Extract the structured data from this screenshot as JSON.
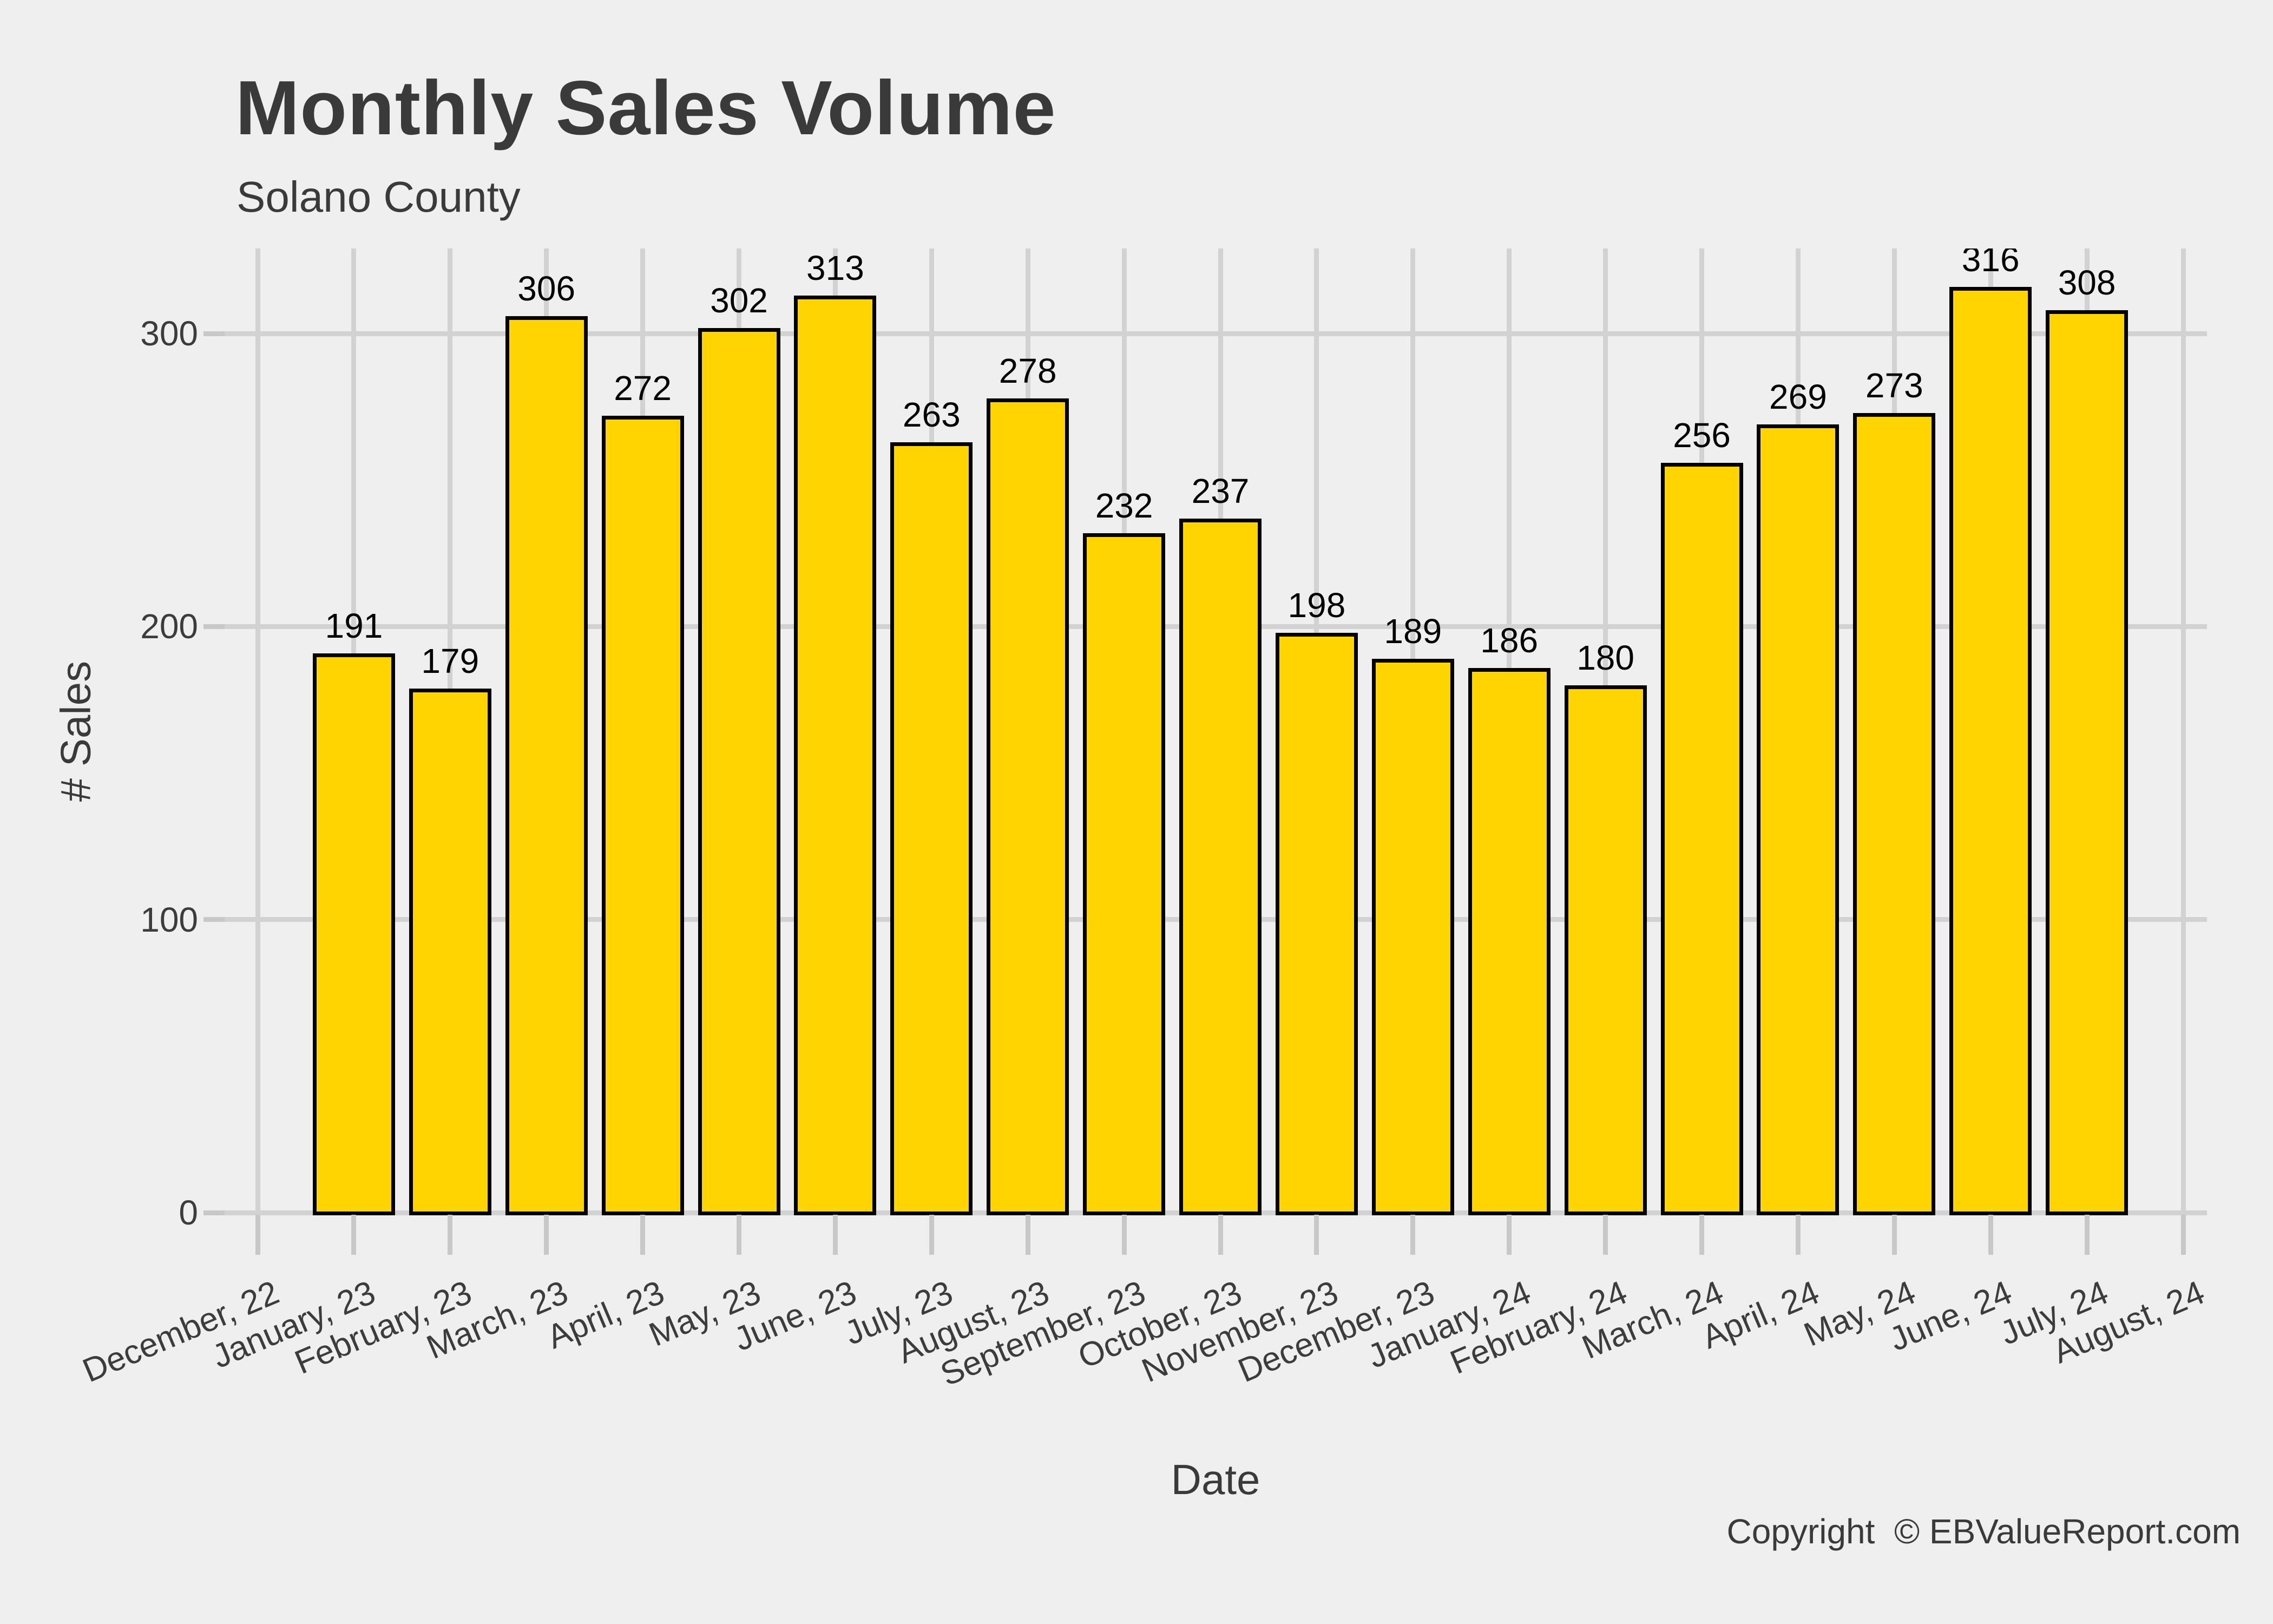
{
  "header": {
    "title": "Monthly Sales Volume",
    "subtitle": "Solano County"
  },
  "footer": {
    "copyright": "Copyright  © EBValueReport.com"
  },
  "colors": {
    "background": "#EFEFEF",
    "gridline": "#D2D2D2",
    "tick": "#C8C8C8",
    "bar_fill": "#FFD400",
    "bar_border": "#000000",
    "text_dark": "#3A3A3A",
    "axis_text": "#3C3C3C",
    "bar_label": "#000000"
  },
  "chart_data": {
    "type": "bar",
    "title": "Monthly Sales Volume",
    "subtitle": "Solano County",
    "xlabel": "Date",
    "ylabel": "# Sales",
    "ylim": [
      0,
      329
    ],
    "yticks": [
      0,
      100,
      200,
      300
    ],
    "grid": "on",
    "legend": "none",
    "categories": [
      "December, 22",
      "January, 23",
      "February, 23",
      "March, 23",
      "April, 23",
      "May, 23",
      "June, 23",
      "July, 23",
      "August, 23",
      "September, 23",
      "October, 23",
      "November, 23",
      "December, 23",
      "January, 24",
      "February, 24",
      "March, 24",
      "April, 24",
      "May, 24",
      "June, 24",
      "July, 24",
      "August, 24"
    ],
    "values": [
      null,
      191,
      179,
      306,
      272,
      302,
      313,
      263,
      278,
      232,
      237,
      198,
      189,
      186,
      180,
      256,
      269,
      273,
      316,
      308,
      null
    ]
  }
}
